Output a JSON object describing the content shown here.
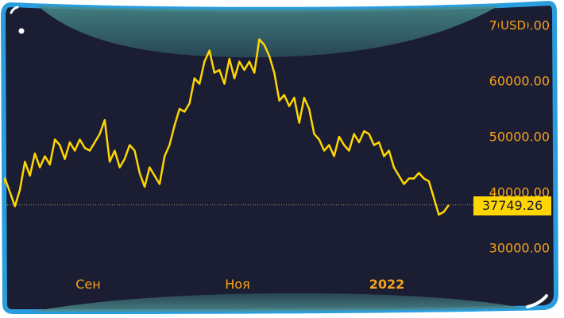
{
  "chart_data": {
    "type": "line",
    "series": [
      {
        "values": [
          39500,
          42500,
          40000,
          37500,
          40500,
          45500,
          43000,
          47000,
          44500,
          46500,
          45000,
          49500,
          48500,
          46000,
          49000,
          47500,
          49500,
          48000,
          47500,
          49000,
          50500,
          53000,
          45500,
          47500,
          44500,
          46000,
          48500,
          47500,
          43500,
          41000,
          44500,
          43000,
          41500,
          46500,
          48500,
          52000,
          55000,
          54500,
          56000,
          60500,
          59500,
          63500,
          65500,
          61500,
          62000,
          59500,
          64000,
          60500,
          63500,
          62000,
          63500,
          61500,
          67500,
          66500,
          64500,
          61500,
          56500,
          57500,
          55500,
          57000,
          52500,
          57000,
          55000,
          50500,
          49500,
          47500,
          48500,
          46500,
          50000,
          48500,
          47500,
          50500,
          49000,
          51000,
          50500,
          48500,
          49000,
          46500,
          47500,
          44500,
          43000,
          41500,
          42500,
          42500,
          43500,
          42500,
          42000,
          39000,
          36000,
          36500,
          37749
        ]
      }
    ],
    "ylim": [
      26000,
      73000
    ],
    "y_ticks": [
      "30000.00",
      "40000.00",
      "50000.00",
      "60000.00",
      "70000.00"
    ],
    "x_ticks": [
      "Сен",
      "Ноя",
      "2022"
    ],
    "currency": "USD",
    "last_price": "37749.26",
    "colors": {
      "line": "#ffd600",
      "axis_labels": "#f7a21b",
      "background": "#1b1d33",
      "frame": "#2a9dde",
      "wave": "#3f7f80"
    }
  }
}
